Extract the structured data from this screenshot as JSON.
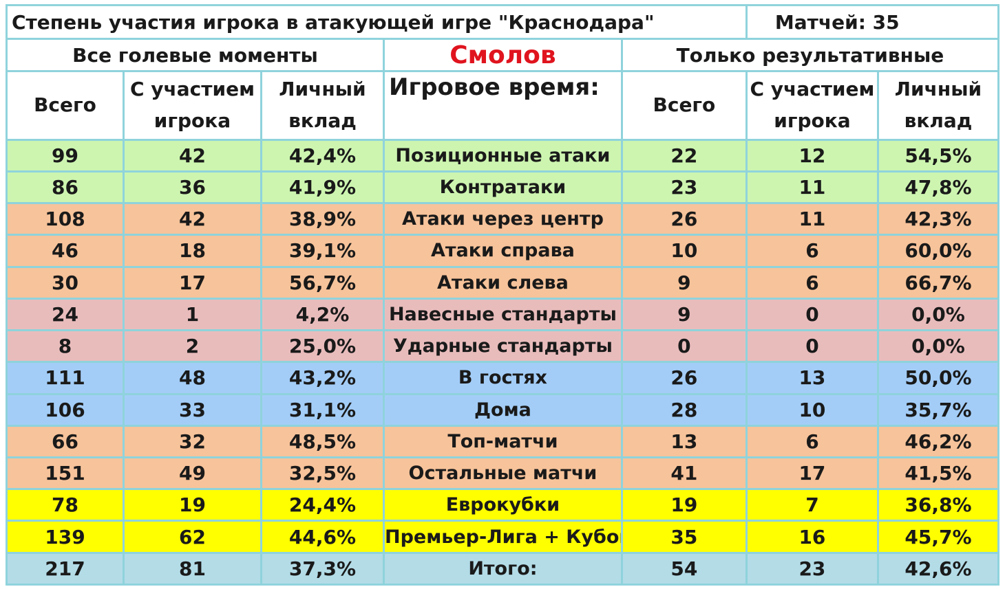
{
  "title": "Степень участия игрока в атакующей игре \"Краснодара\"",
  "matches_label": "Матчей:  35",
  "left_section": "Все голевые моменты",
  "player": "Смолов",
  "right_section": "Только результативные",
  "headers": {
    "total": "Всего",
    "with_player_1": "С участием",
    "with_player_2": "игрока",
    "personal_1": "Личный",
    "personal_2": "вклад",
    "time": "Игровое время:"
  },
  "rows": [
    {
      "group": "green",
      "all_total": "99",
      "all_with": "42",
      "all_pct": "42,4%",
      "label": "Позиционные атаки",
      "res_total": "22",
      "res_with": "12",
      "res_pct": "54,5%"
    },
    {
      "group": "green",
      "all_total": "86",
      "all_with": "36",
      "all_pct": "41,9%",
      "label": "Контратаки",
      "res_total": "23",
      "res_with": "11",
      "res_pct": "47,8%"
    },
    {
      "group": "orange",
      "all_total": "108",
      "all_with": "42",
      "all_pct": "38,9%",
      "label": "Атаки через центр",
      "res_total": "26",
      "res_with": "11",
      "res_pct": "42,3%"
    },
    {
      "group": "orange",
      "all_total": "46",
      "all_with": "18",
      "all_pct": "39,1%",
      "label": "Атаки справа",
      "res_total": "10",
      "res_with": "6",
      "res_pct": "60,0%"
    },
    {
      "group": "orange",
      "all_total": "30",
      "all_with": "17",
      "all_pct": "56,7%",
      "label": "Атаки слева",
      "res_total": "9",
      "res_with": "6",
      "res_pct": "66,7%"
    },
    {
      "group": "pink",
      "all_total": "24",
      "all_with": "1",
      "all_pct": "4,2%",
      "label": "Навесные стандарты",
      "res_total": "9",
      "res_with": "0",
      "res_pct": "0,0%"
    },
    {
      "group": "pink",
      "all_total": "8",
      "all_with": "2",
      "all_pct": "25,0%",
      "label": "Ударные стандарты",
      "res_total": "0",
      "res_with": "0",
      "res_pct": "0,0%"
    },
    {
      "group": "blue",
      "all_total": "111",
      "all_with": "48",
      "all_pct": "43,2%",
      "label": "В гостях",
      "res_total": "26",
      "res_with": "13",
      "res_pct": "50,0%"
    },
    {
      "group": "blue",
      "all_total": "106",
      "all_with": "33",
      "all_pct": "31,1%",
      "label": "Дома",
      "res_total": "28",
      "res_with": "10",
      "res_pct": "35,7%"
    },
    {
      "group": "orange",
      "all_total": "66",
      "all_with": "32",
      "all_pct": "48,5%",
      "label": "Топ-матчи",
      "res_total": "13",
      "res_with": "6",
      "res_pct": "46,2%"
    },
    {
      "group": "orange",
      "all_total": "151",
      "all_with": "49",
      "all_pct": "32,5%",
      "label": "Остальные матчи",
      "res_total": "41",
      "res_with": "17",
      "res_pct": "41,5%"
    },
    {
      "group": "yellow",
      "all_total": "78",
      "all_with": "19",
      "all_pct": "24,4%",
      "label": "Еврокубки",
      "res_total": "19",
      "res_with": "7",
      "res_pct": "36,8%"
    },
    {
      "group": "yellow",
      "all_total": "139",
      "all_with": "62",
      "all_pct": "44,6%",
      "label": "Премьер-Лига + Кубок",
      "res_total": "35",
      "res_with": "16",
      "res_pct": "45,7%"
    },
    {
      "group": "total",
      "all_total": "217",
      "all_with": "81",
      "all_pct": "37,3%",
      "label": "Итого:",
      "res_total": "54",
      "res_with": "23",
      "res_pct": "42,6%"
    }
  ]
}
